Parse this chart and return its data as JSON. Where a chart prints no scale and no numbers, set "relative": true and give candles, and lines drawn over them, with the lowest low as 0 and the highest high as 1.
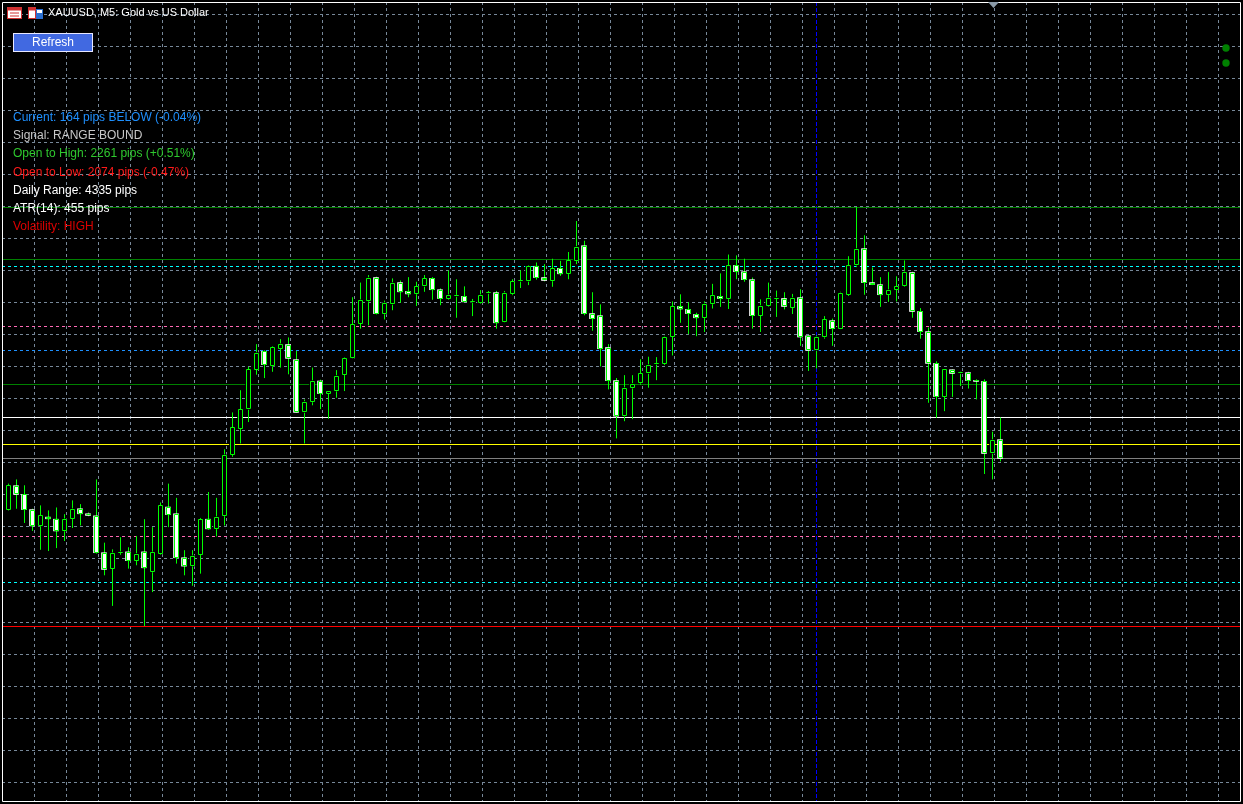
{
  "chart_data": {
    "type": "candlestick",
    "title": "XAUUSD, M5: Gold vs US Dollar",
    "relative": true,
    "grid": true,
    "tick_labels": false,
    "color": "#00ff00",
    "categories": [
      null,
      null,
      null,
      null,
      null,
      null,
      null,
      null,
      null,
      null,
      null,
      null,
      null,
      null,
      null,
      null,
      null,
      null,
      null,
      null,
      null,
      null,
      null,
      null,
      null,
      null,
      null,
      null,
      null,
      null,
      null,
      null,
      null,
      null,
      null,
      null,
      null,
      null,
      null,
      null,
      null,
      null,
      null,
      null,
      null,
      null,
      null,
      null,
      null,
      null,
      null,
      null,
      null,
      null,
      null,
      null,
      null,
      null,
      null,
      null,
      null,
      null,
      null,
      null,
      null,
      null,
      null,
      null,
      null,
      null,
      null,
      null,
      null,
      null,
      null,
      null,
      null,
      null,
      null,
      null,
      null,
      null,
      null,
      null,
      null,
      null,
      null,
      null,
      null,
      null,
      null,
      null,
      null,
      null,
      null,
      null,
      null,
      null,
      null,
      null,
      null,
      null,
      null,
      null,
      null,
      null,
      null,
      null,
      null,
      null,
      null,
      null,
      null,
      null,
      null,
      null,
      null,
      null,
      null,
      null,
      null,
      null,
      null,
      null,
      null
    ],
    "ohlc": [
      [
        0.278,
        0.34,
        0.276,
        0.336
      ],
      [
        0.335,
        0.35,
        0.28,
        0.314
      ],
      [
        0.314,
        0.336,
        0.246,
        0.278
      ],
      [
        0.278,
        0.28,
        0.227,
        0.239
      ],
      [
        0.239,
        0.288,
        0.182,
        0.264
      ],
      [
        0.26,
        0.276,
        0.179,
        0.256
      ],
      [
        0.255,
        0.283,
        0.186,
        0.227
      ],
      [
        0.227,
        0.267,
        0.203,
        0.256
      ],
      [
        0.256,
        0.3,
        0.234,
        0.28
      ],
      [
        0.28,
        0.291,
        0.24,
        0.268
      ],
      [
        0.268,
        0.271,
        0.262,
        0.264
      ],
      [
        0.263,
        0.35,
        0.173,
        0.175
      ],
      [
        0.175,
        0.199,
        0.121,
        0.135
      ],
      [
        0.137,
        0.183,
        0.048,
        0.175
      ],
      [
        0.175,
        0.212,
        0.17,
        0.177
      ],
      [
        0.177,
        0.188,
        0.137,
        0.156
      ],
      [
        0.156,
        0.215,
        0.145,
        0.173
      ],
      [
        0.177,
        0.255,
        0,
        0.139
      ],
      [
        0.129,
        0.236,
        0.081,
        0.177
      ],
      [
        0.172,
        0.295,
        0.17,
        0.288
      ],
      [
        0.284,
        0.34,
        0.236,
        0.266
      ],
      [
        0.268,
        0.306,
        0.149,
        0.163
      ],
      [
        0.163,
        0.181,
        0.121,
        0.143
      ],
      [
        0.143,
        0.181,
        0.096,
        0.168
      ],
      [
        0.17,
        0.258,
        0.125,
        0.255
      ],
      [
        0.255,
        0.32,
        0.23,
        0.232
      ],
      [
        0.232,
        0.306,
        0.214,
        0.261
      ],
      [
        0.263,
        0.422,
        0.24,
        0.409
      ],
      [
        0.409,
        0.51,
        0.404,
        0.474
      ],
      [
        0.471,
        0.563,
        0.436,
        0.517
      ],
      [
        0.517,
        0.619,
        0.487,
        0.613
      ],
      [
        0.612,
        0.673,
        0.6,
        0.653
      ],
      [
        0.656,
        0.658,
        0.592,
        0.624
      ],
      [
        0.621,
        0.668,
        0.607,
        0.666
      ],
      [
        0.662,
        0.685,
        0.617,
        0.674
      ],
      [
        0.672,
        0.689,
        0.601,
        0.639
      ],
      [
        0.636,
        0.657,
        0.509,
        0.51
      ],
      [
        0.51,
        0.541,
        0.436,
        0.536
      ],
      [
        0.535,
        0.617,
        0.527,
        0.586
      ],
      [
        0.585,
        0.588,
        0.518,
        0.555
      ],
      [
        0.555,
        0.561,
        0.495,
        0.56
      ],
      [
        0.561,
        0.611,
        0.545,
        0.598
      ],
      [
        0.6,
        0.641,
        0.561,
        0.639
      ],
      [
        0.639,
        0.785,
        0.638,
        0.72
      ],
      [
        0.722,
        0.82,
        0.71,
        0.779
      ],
      [
        0.776,
        0.838,
        0.718,
        0.832
      ],
      [
        0.832,
        0.834,
        0.744,
        0.746
      ],
      [
        0.745,
        0.777,
        0.732,
        0.772
      ],
      [
        0.768,
        0.83,
        0.754,
        0.82
      ],
      [
        0.82,
        0.825,
        0.772,
        0.798
      ],
      [
        0.799,
        0.833,
        0.785,
        0.793
      ],
      [
        0.793,
        0.822,
        0.764,
        0.811
      ],
      [
        0.811,
        0.838,
        0.798,
        0.83
      ],
      [
        0.83,
        0.833,
        0.779,
        0.803
      ],
      [
        0.803,
        0.806,
        0.766,
        0.782
      ],
      [
        0.781,
        0.849,
        0.779,
        0.791
      ],
      [
        0.787,
        0.828,
        0.736,
        0.79
      ],
      [
        0.787,
        0.811,
        0.774,
        0.774
      ],
      [
        0.773,
        0.781,
        0.74,
        0.775
      ],
      [
        0.772,
        0.802,
        0.77,
        0.791
      ],
      [
        0.794,
        0.8,
        0.77,
        0.796
      ],
      [
        0.796,
        0.8,
        0.71,
        0.724
      ],
      [
        0.725,
        0.8,
        0.724,
        0.796
      ],
      [
        0.793,
        0.828,
        0.79,
        0.823
      ],
      [
        0.823,
        0.849,
        0.807,
        0.824
      ],
      [
        0.823,
        0.861,
        0.814,
        0.859
      ],
      [
        0.859,
        0.868,
        0.827,
        0.832
      ],
      [
        0.832,
        0.864,
        0.823,
        0.825
      ],
      [
        0.824,
        0.877,
        0.81,
        0.854
      ],
      [
        0.854,
        0.872,
        0.836,
        0.841
      ],
      [
        0.841,
        0.893,
        0.828,
        0.873
      ],
      [
        0.872,
        0.967,
        0.864,
        0.906
      ],
      [
        0.908,
        0.92,
        0.742,
        0.746
      ],
      [
        0.746,
        0.797,
        0.705,
        0.734
      ],
      [
        0.741,
        0.768,
        0.62,
        0.662
      ],
      [
        0.665,
        0.673,
        0.565,
        0.586
      ],
      [
        0.586,
        0.592,
        0.448,
        0.501
      ],
      [
        0.501,
        0.599,
        0.489,
        0.569
      ],
      [
        0.568,
        0.599,
        0.494,
        0.579
      ],
      [
        0.58,
        0.637,
        0.576,
        0.603
      ],
      [
        0.603,
        0.643,
        0.569,
        0.624
      ],
      [
        0.625,
        0.642,
        0.587,
        0.627
      ],
      [
        0.626,
        0.693,
        0.623,
        0.691
      ],
      [
        0.691,
        0.775,
        0.646,
        0.763
      ],
      [
        0.763,
        0.792,
        0.724,
        0.757
      ],
      [
        0.756,
        0.773,
        0.697,
        0.746
      ],
      [
        0.744,
        0.748,
        0.692,
        0.736
      ],
      [
        0.736,
        0.775,
        0.702,
        0.77
      ],
      [
        0.769,
        0.817,
        0.758,
        0.79
      ],
      [
        0.787,
        0.842,
        0.762,
        0.782
      ],
      [
        0.781,
        0.887,
        0.757,
        0.861
      ],
      [
        0.861,
        0.885,
        0.828,
        0.846
      ],
      [
        0.846,
        0.877,
        0.822,
        0.827
      ],
      [
        0.827,
        0.832,
        0.71,
        0.741
      ],
      [
        0.741,
        0.78,
        0.702,
        0.765
      ],
      [
        0.764,
        0.82,
        0.762,
        0.784
      ],
      [
        0.782,
        0.801,
        0.738,
        0.784
      ],
      [
        0.782,
        0.797,
        0.756,
        0.763
      ],
      [
        0.76,
        0.793,
        0.745,
        0.784
      ],
      [
        0.784,
        0.804,
        0.669,
        0.69
      ],
      [
        0.693,
        0.694,
        0.609,
        0.658
      ],
      [
        0.658,
        0.694,
        0.615,
        0.691
      ],
      [
        0.69,
        0.74,
        0.686,
        0.732
      ],
      [
        0.729,
        0.734,
        0.669,
        0.71
      ],
      [
        0.71,
        0.798,
        0.709,
        0.796
      ],
      [
        0.791,
        0.883,
        0.788,
        0.861
      ],
      [
        0.861,
        1,
        0.857,
        0.901
      ],
      [
        0.901,
        0.933,
        0.791,
        0.82
      ],
      [
        0.82,
        0.856,
        0.814,
        0.815
      ],
      [
        0.815,
        0.833,
        0.762,
        0.791
      ],
      [
        0.791,
        0.845,
        0.774,
        0.803
      ],
      [
        0.803,
        0.835,
        0.775,
        0.811
      ],
      [
        0.812,
        0.873,
        0.81,
        0.846
      ],
      [
        0.844,
        0.846,
        0.736,
        0.751
      ],
      [
        0.751,
        0.759,
        0.686,
        0.703
      ],
      [
        0.703,
        0.713,
        0.533,
        0.627
      ],
      [
        0.627,
        0.632,
        0.497,
        0.548
      ],
      [
        0.548,
        0.613,
        0.513,
        0.613
      ],
      [
        0.612,
        0.613,
        0.547,
        0.603
      ],
      [
        0.603,
        0.607,
        0.573,
        0.604
      ],
      [
        0.605,
        0.607,
        0.567,
        0.586
      ],
      [
        0.586,
        0.589,
        0.541,
        0.584
      ],
      [
        0.584,
        0.589,
        0.363,
        0.412
      ],
      [
        0.412,
        0.464,
        0.35,
        0.445
      ],
      [
        0.445,
        0.498,
        0.393,
        0.4
      ]
    ],
    "colors": [
      "#000000",
      "#ffffff",
      "#ffffff",
      "#ffffff",
      "#000000",
      "#ffffff",
      "#ffffff",
      "#000000",
      "#000000",
      "#ffffff",
      "#ffffff",
      "#ffffff",
      "#ffffff",
      "#000000",
      "#000000",
      "#ffffff",
      "#000000",
      "#ffffff",
      "#000000",
      "#000000",
      "#ffffff",
      "#ffffff",
      "#ffffff",
      "#000000",
      "#000000",
      "#ffffff",
      "#000000",
      "#000000",
      "#000000",
      "#000000",
      "#000000",
      "#000000",
      "#ffffff",
      "#000000",
      "#000000",
      "#ffffff",
      "#ffffff",
      "#000000",
      "#000000",
      "#ffffff",
      "#000000",
      "#000000",
      "#000000",
      "#000000",
      "#000000",
      "#000000",
      "#ffffff",
      "#000000",
      "#000000",
      "#ffffff",
      "#ffffff",
      "#000000",
      "#000000",
      "#ffffff",
      "#ffffff",
      "#000000",
      "#000000",
      "#ffffff",
      "#000000",
      "#000000",
      "#000000",
      "#ffffff",
      "#000000",
      "#000000",
      "#000000",
      "#000000",
      "#ffffff",
      "#ffffff",
      "#000000",
      "#ffffff",
      "#000000",
      "#000000",
      "#ffffff",
      "#ffffff",
      "#ffffff",
      "#ffffff",
      "#ffffff",
      "#000000",
      "#000000",
      "#000000",
      "#000000",
      "#000000",
      "#000000",
      "#000000",
      "#ffffff",
      "#ffffff",
      "#ffffff",
      "#000000",
      "#000000",
      "#ffffff",
      "#000000",
      "#ffffff",
      "#ffffff",
      "#ffffff",
      "#000000",
      "#000000",
      "#000000",
      "#ffffff",
      "#000000",
      "#ffffff",
      "#ffffff",
      "#000000",
      "#000000",
      "#ffffff",
      "#000000",
      "#000000",
      "#000000",
      "#ffffff",
      "#ffffff",
      "#ffffff",
      "#000000",
      "#000000",
      "#000000",
      "#ffffff",
      "#ffffff",
      "#ffffff",
      "#ffffff",
      "#000000",
      "#ffffff",
      "#000000",
      "#ffffff",
      "#ffffff",
      "#ffffff",
      "#000000",
      "#ffffff"
    ],
    "ref_lines": [
      {
        "axis": "y",
        "value": 1,
        "color": "#008000",
        "line_style": "solid"
      },
      {
        "axis": "y",
        "value": 0.877,
        "color": "#008000",
        "line_style": "solid"
      },
      {
        "axis": "y",
        "value": 0.859,
        "color": "#00ffff",
        "line_style": "dashed"
      },
      {
        "axis": "y",
        "value": 0.717,
        "color": "#ff69b4",
        "line_style": "dashed"
      },
      {
        "axis": "y",
        "value": 0.658,
        "color": "#1e90ff",
        "line_style": "dashed"
      },
      {
        "axis": "y",
        "value": 0.579,
        "color": "#008000",
        "line_style": "solid"
      },
      {
        "axis": "y",
        "value": 0.5,
        "color": "#ffffff",
        "line_style": "solid"
      },
      {
        "axis": "y",
        "value": 0.435,
        "color": "#ffff00",
        "line_style": "solid"
      },
      {
        "axis": "y",
        "value": 0.4,
        "color": "#808080",
        "line_style": "solid"
      },
      {
        "axis": "y",
        "value": 0.216,
        "color": "#ff69b4",
        "line_style": "dashed"
      },
      {
        "axis": "y",
        "value": 0.106,
        "color": "#00ffff",
        "line_style": "dashed"
      },
      {
        "axis": "y",
        "value": 0,
        "color": "#ff0000",
        "line_style": "solid"
      }
    ],
    "annotations": [
      "Refresh",
      "Current: 164 pips BELOW (-0.04%)",
      "Signal: RANGE BOUND",
      "Open to High: 2261 pips (+0.51%)",
      "Open to Low: 2074 pips (-0.47%)",
      "Daily Range: 4335 pips",
      "ATR(14): 455 pips",
      "Volatility: HIGH"
    ]
  }
}
